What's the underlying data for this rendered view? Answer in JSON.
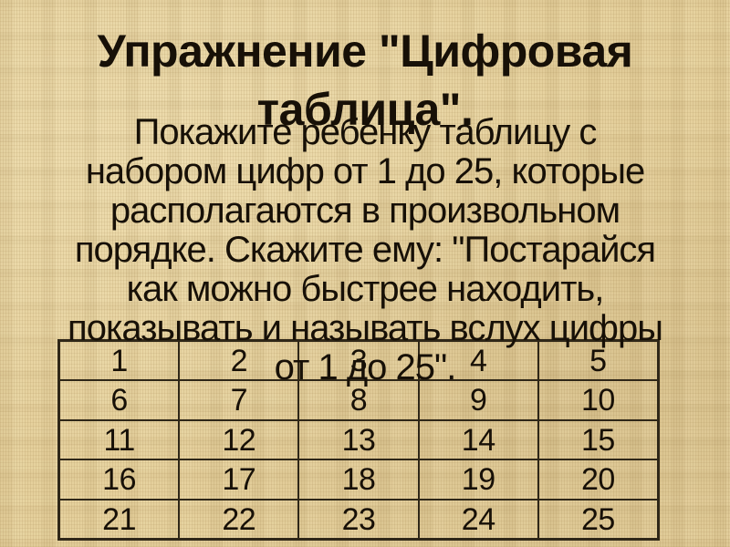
{
  "slide": {
    "title_lines": [
      "Упражнение \"Цифровая",
      "таблица\"."
    ],
    "body_lines": [
      "Покажите ребенку таблицу с",
      "набором цифр от 1 до 25, которые",
      "располагаются в произвольном",
      "порядке. Скажите ему: \"Постарайся",
      "как можно быстрее находить,",
      "показывать и называть вслух цифры",
      "от 1 до 25\"."
    ],
    "table": {
      "rows": [
        [
          "1",
          "2",
          "3",
          "4",
          "5"
        ],
        [
          "6",
          "7",
          "8",
          "9",
          "10"
        ],
        [
          "11",
          "12",
          "13",
          "14",
          "15"
        ],
        [
          "16",
          "17",
          "18",
          "19",
          "20"
        ],
        [
          "21",
          "22",
          "23",
          "24",
          "25"
        ]
      ]
    },
    "colors": {
      "background": "#e5d09c",
      "text": "#171007",
      "table_border": "#2f2718"
    }
  }
}
